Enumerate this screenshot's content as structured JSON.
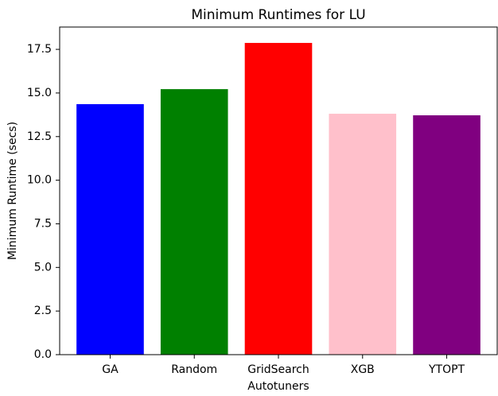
{
  "chart_data": {
    "type": "bar",
    "title": "Minimum Runtimes for LU",
    "x_label": "Autotuners",
    "y_label": "Minimum Runtime (secs)",
    "categories": [
      "GA",
      "Random",
      "GridSearch",
      "XGB",
      "YTOPT"
    ],
    "values": [
      14.36,
      15.22,
      17.87,
      13.81,
      13.72
    ],
    "colors": [
      "#0000ff",
      "#008000",
      "#ff0000",
      "#ffc0cb",
      "#800080"
    ],
    "ylim": [
      0,
      18.78
    ],
    "yticks": [
      {
        "value": 0,
        "label": "0.0"
      },
      2.5,
      {
        "value": 5,
        "label": "5.0"
      },
      7.5,
      {
        "value": 10,
        "label": "10.0"
      },
      12.5,
      {
        "value": 15,
        "label": "15.0"
      },
      17.5
    ],
    "grid": false
  }
}
